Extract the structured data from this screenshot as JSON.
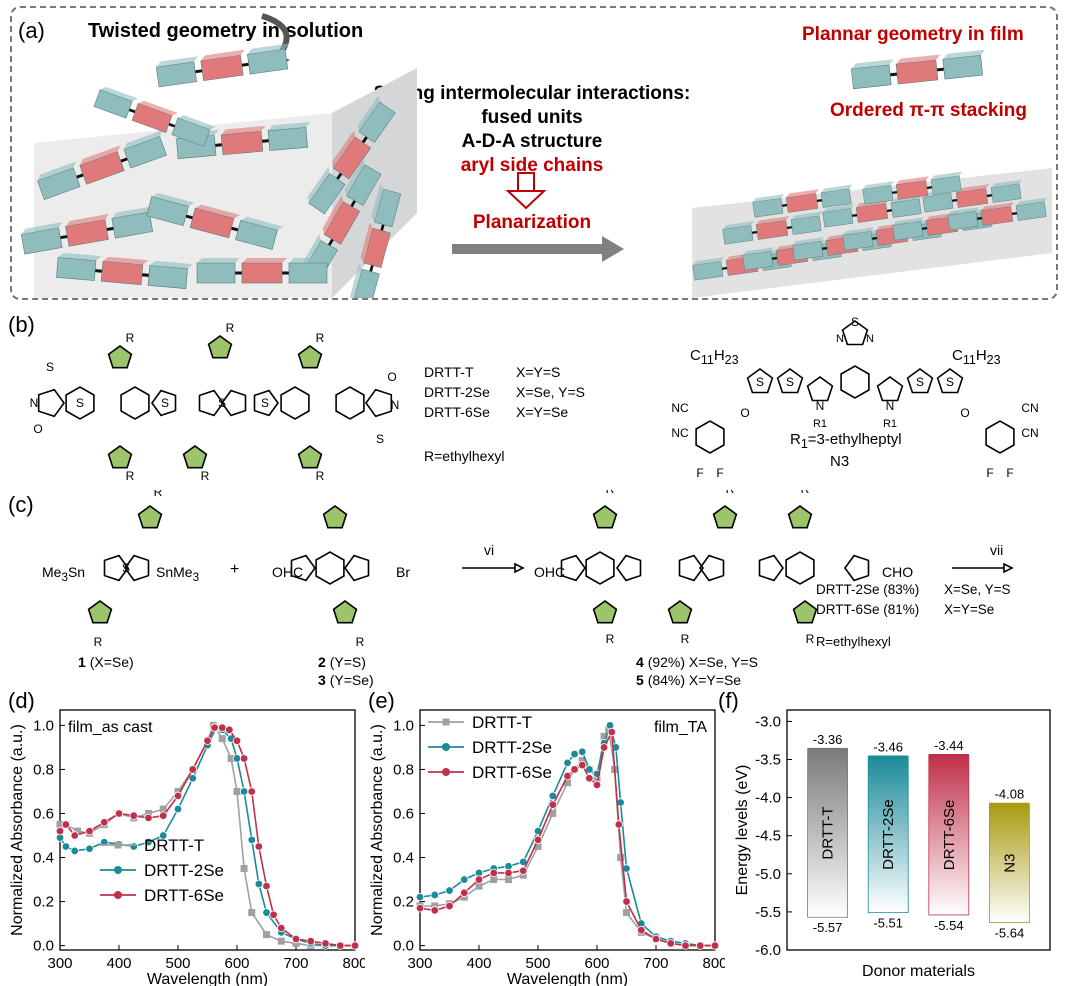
{
  "panel_a": {
    "label": "(a)",
    "left_title": "Twisted geometry in solution",
    "center_heading": "Strong intermolecular interactions:",
    "center_items": [
      "fused units",
      "A-D-A structure"
    ],
    "center_item_red": "aryl side chains",
    "arrow_label": "Planarization",
    "right_title": "Plannar geometry in film",
    "right_subtitle": "Ordered π-π stacking",
    "colors": {
      "acceptor": "#8fbcbc",
      "donor": "#e07a7a",
      "dashed_border": "#777777",
      "red_text": "#c00000",
      "arrow": "#808080"
    }
  },
  "panel_b": {
    "label": "(b)",
    "table": [
      {
        "name": "DRTT-T",
        "formula": "X=Y=S"
      },
      {
        "name": "DRTT-2Se",
        "formula": "X=Se, Y=S"
      },
      {
        "name": "DRTT-6Se",
        "formula": "X=Y=Se"
      }
    ],
    "r_def": "R=ethylhexyl",
    "n3_r1": "R",
    "n3_r1_sub": "1",
    "n3_r1_def": "=3-ethylheptyl",
    "n3_name": "N3",
    "c11h23": "C",
    "c11h23_sub1": "11",
    "c11h23_mid": "H",
    "c11h23_sub2": "23",
    "atom_labels": {
      "S": "S",
      "N": "N",
      "O": "O",
      "F": "F",
      "NC": "NC",
      "CN": "CN",
      "R": "R",
      "X": "X",
      "Y": "Y"
    }
  },
  "panel_c": {
    "label": "(c)",
    "compound1_name": "1",
    "compound1_desc": "(X=Se)",
    "compound2_name": "2",
    "compound2_desc": "(Y=S)",
    "compound3_name": "3",
    "compound3_desc": "(Y=Se)",
    "compound4_name": "4",
    "compound4_desc": "(92%)  X=Se, Y=S",
    "compound5_name": "5",
    "compound5_desc": "(84%)  X=Y=Se",
    "step_vi": "vi",
    "step_vii": "vii",
    "plus": "+",
    "sn_left": "Me",
    "sn_left_sub": "3",
    "sn_left_end": "Sn",
    "sn_right": "SnMe",
    "sn_right_sub": "3",
    "ohc": "OHC",
    "cho": "CHO",
    "br": "Br",
    "products": [
      {
        "name": "DRTT-2Se (83%)",
        "formula": "X=Se, Y=S"
      },
      {
        "name": "DRTT-6Se (81%)",
        "formula": "X=Y=Se"
      }
    ],
    "r_def": "R=ethylhexyl"
  },
  "chart_data": [
    {
      "panel": "(d)",
      "type": "line",
      "annotation": "film_as cast",
      "xlabel": "Wavelength (nm)",
      "ylabel": "Normalized Absorbance (a.u.)",
      "xlim": [
        300,
        800
      ],
      "ylim": [
        -0.02,
        1.07
      ],
      "xticks": [
        300,
        400,
        500,
        600,
        700,
        800
      ],
      "yticks": [
        0.0,
        0.2,
        0.4,
        0.6,
        0.8,
        1.0
      ],
      "legend_position": "bottom-left",
      "series": [
        {
          "name": "DRTT-T",
          "color": "#a0a0a0",
          "marker": "square",
          "x": [
            300,
            310,
            330,
            350,
            375,
            400,
            425,
            450,
            475,
            500,
            525,
            550,
            560,
            575,
            590,
            600,
            612,
            625,
            650,
            675,
            700,
            725,
            750,
            775,
            800
          ],
          "y": [
            0.55,
            0.55,
            0.52,
            0.51,
            0.55,
            0.6,
            0.58,
            0.6,
            0.62,
            0.7,
            0.8,
            0.93,
            1.0,
            0.94,
            0.85,
            0.7,
            0.35,
            0.15,
            0.05,
            0.02,
            0.01,
            0.0,
            0.0,
            0.0,
            0.0
          ]
        },
        {
          "name": "DRTT-2Se",
          "color": "#1b8a9a",
          "marker": "circle",
          "x": [
            300,
            310,
            325,
            350,
            375,
            400,
            425,
            450,
            475,
            500,
            525,
            550,
            565,
            575,
            590,
            600,
            612,
            625,
            637,
            650,
            675,
            700,
            725,
            750,
            775,
            800
          ],
          "y": [
            0.49,
            0.45,
            0.43,
            0.44,
            0.47,
            0.46,
            0.45,
            0.47,
            0.5,
            0.62,
            0.76,
            0.91,
            0.99,
            0.98,
            0.94,
            0.85,
            0.7,
            0.48,
            0.28,
            0.15,
            0.06,
            0.03,
            0.01,
            0.0,
            0.0,
            0.0
          ]
        },
        {
          "name": "DRTT-6Se",
          "color": "#c0304a",
          "marker": "circle",
          "x": [
            300,
            310,
            325,
            350,
            375,
            400,
            425,
            450,
            475,
            500,
            525,
            550,
            562,
            575,
            587,
            600,
            612,
            625,
            637,
            650,
            662,
            675,
            700,
            725,
            750,
            775,
            800
          ],
          "y": [
            0.52,
            0.55,
            0.5,
            0.52,
            0.56,
            0.6,
            0.59,
            0.58,
            0.59,
            0.68,
            0.8,
            0.93,
            0.99,
            0.99,
            0.98,
            0.93,
            0.85,
            0.7,
            0.45,
            0.27,
            0.14,
            0.08,
            0.03,
            0.02,
            0.01,
            0.0,
            0.0
          ]
        }
      ]
    },
    {
      "panel": "(e)",
      "type": "line",
      "annotation": "film_TA",
      "xlabel": "Wavelength (nm)",
      "ylabel": "Normalized Absorbance (a.u.)",
      "xlim": [
        300,
        800
      ],
      "ylim": [
        -0.02,
        1.07
      ],
      "xticks": [
        300,
        400,
        500,
        600,
        700,
        800
      ],
      "yticks": [
        0.0,
        0.2,
        0.4,
        0.6,
        0.8,
        1.0
      ],
      "legend_position": "top-left",
      "series": [
        {
          "name": "DRTT-T",
          "color": "#a0a0a0",
          "marker": "square",
          "x": [
            300,
            325,
            350,
            375,
            400,
            425,
            450,
            475,
            500,
            525,
            550,
            562,
            575,
            587,
            600,
            612,
            620,
            630,
            640,
            650,
            675,
            700,
            725,
            750,
            775,
            800
          ],
          "y": [
            0.18,
            0.18,
            0.19,
            0.22,
            0.27,
            0.3,
            0.3,
            0.32,
            0.45,
            0.6,
            0.74,
            0.8,
            0.84,
            0.8,
            0.76,
            0.95,
            0.98,
            0.8,
            0.4,
            0.15,
            0.06,
            0.03,
            0.01,
            0.0,
            0.0,
            0.0
          ]
        },
        {
          "name": "DRTT-2Se",
          "color": "#1b8a9a",
          "marker": "circle",
          "x": [
            300,
            325,
            350,
            375,
            400,
            425,
            450,
            475,
            500,
            525,
            550,
            562,
            575,
            587,
            600,
            612,
            622,
            632,
            640,
            650,
            675,
            700,
            725,
            750,
            775,
            800
          ],
          "y": [
            0.22,
            0.23,
            0.25,
            0.3,
            0.33,
            0.35,
            0.36,
            0.38,
            0.52,
            0.68,
            0.83,
            0.87,
            0.88,
            0.8,
            0.78,
            0.92,
            1.0,
            0.9,
            0.65,
            0.35,
            0.1,
            0.04,
            0.02,
            0.01,
            0.0,
            0.0
          ]
        },
        {
          "name": "DRTT-6Se",
          "color": "#c0304a",
          "marker": "circle",
          "x": [
            300,
            325,
            350,
            375,
            400,
            425,
            450,
            475,
            500,
            525,
            550,
            562,
            575,
            587,
            600,
            612,
            625,
            637,
            650,
            675,
            700,
            725,
            750,
            775,
            800
          ],
          "y": [
            0.17,
            0.16,
            0.18,
            0.24,
            0.3,
            0.33,
            0.33,
            0.34,
            0.48,
            0.64,
            0.77,
            0.8,
            0.82,
            0.76,
            0.73,
            0.9,
            0.97,
            0.55,
            0.2,
            0.07,
            0.03,
            0.01,
            0.0,
            0.0,
            0.0
          ]
        }
      ]
    },
    {
      "panel": "(f)",
      "type": "bar",
      "xlabel": "Donor materials",
      "ylabel": "Energy levels (eV)",
      "ylim": [
        -6.0,
        -2.85
      ],
      "yticks": [
        -6.0,
        -5.5,
        -5.0,
        -4.5,
        -4.0,
        -3.5,
        -3.0
      ],
      "categories": [
        "DRTT-T",
        "DRTT-2Se",
        "DRTT-6Se",
        "N3"
      ],
      "lumo": [
        -3.36,
        -3.46,
        -3.44,
        -4.08
      ],
      "homo": [
        -5.57,
        -5.51,
        -5.54,
        -5.64
      ],
      "lumo_labels": [
        "-3.36",
        "-3.46",
        "-3.44",
        "-4.08"
      ],
      "homo_labels": [
        "-5.57",
        "-5.51",
        "-5.54",
        "-5.64"
      ],
      "colors": [
        "#7a7a7a",
        "#1b8a9a",
        "#c0304a",
        "#a89a10"
      ]
    }
  ],
  "panel_labels": {
    "d": "(d)",
    "e": "(e)",
    "f": "(f)"
  }
}
